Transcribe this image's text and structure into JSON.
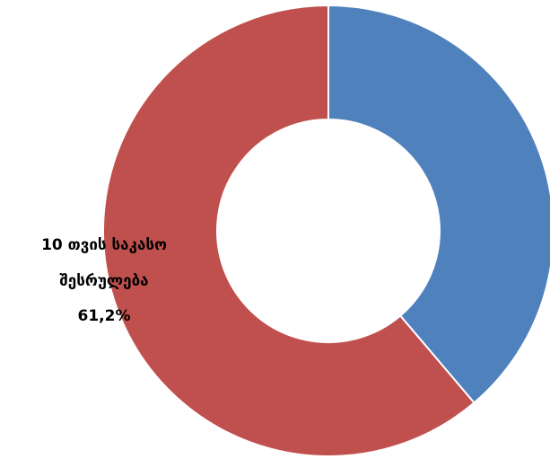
{
  "chart_data": {
    "type": "pie",
    "donut": true,
    "slices": [
      {
        "value": 38.8,
        "color": "#4f81bd"
      },
      {
        "value": 61.2,
        "color": "#c0504d"
      }
    ],
    "data_label": {
      "line1": "10 თვის საკასო",
      "line2": "შესრულება",
      "line3": "61,2%"
    }
  }
}
